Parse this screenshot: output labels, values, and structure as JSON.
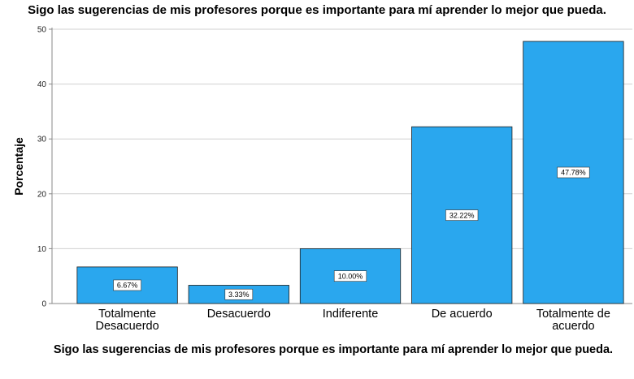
{
  "chart_data": {
    "type": "bar",
    "title": "Sigo las sugerencias de mis profesores porque es importante para mí aprender lo mejor que pueda.",
    "xlabel": "Sigo las sugerencias de mis profesores porque es importante para mí aprender lo mejor que pueda.",
    "ylabel": "Porcentaje",
    "ylim": [
      0,
      50
    ],
    "yticks": [
      0,
      10,
      20,
      30,
      40,
      50
    ],
    "grid": true,
    "categories": [
      [
        "Totalmente",
        "Desacuerdo"
      ],
      [
        "Desacuerdo"
      ],
      [
        "Indiferente"
      ],
      [
        "De acuerdo"
      ],
      [
        "Totalmente de",
        "acuerdo"
      ]
    ],
    "values": [
      6.67,
      3.33,
      10.0,
      32.22,
      47.78
    ],
    "data_labels": [
      "6.67%",
      "3.33%",
      "10.00%",
      "32.22%",
      "47.78%"
    ],
    "colors": {
      "bar": "#2aa7ee",
      "grid": "#d0d0d0",
      "axis": "#888888"
    }
  }
}
